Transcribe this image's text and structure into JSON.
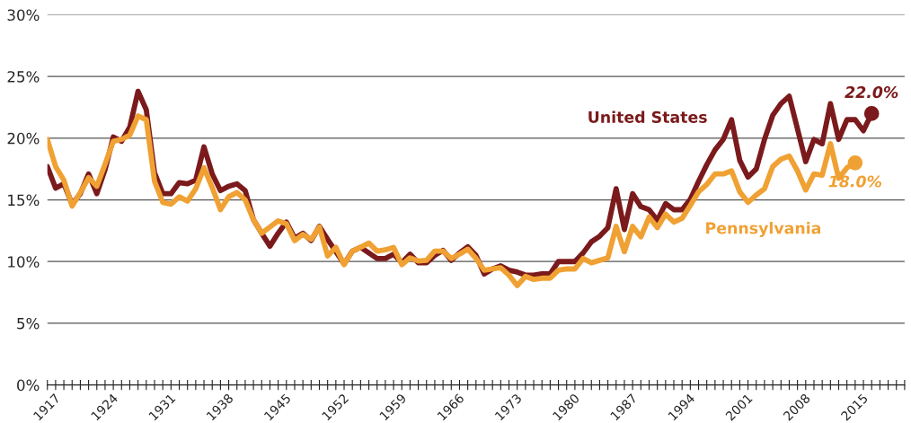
{
  "chart_data": {
    "type": "line",
    "x": [
      1917,
      1918,
      1919,
      1920,
      1921,
      1922,
      1923,
      1924,
      1925,
      1926,
      1927,
      1928,
      1929,
      1930,
      1931,
      1932,
      1933,
      1934,
      1935,
      1936,
      1937,
      1938,
      1939,
      1940,
      1941,
      1942,
      1943,
      1944,
      1945,
      1946,
      1947,
      1948,
      1949,
      1950,
      1951,
      1952,
      1953,
      1954,
      1955,
      1956,
      1957,
      1958,
      1959,
      1960,
      1961,
      1962,
      1963,
      1964,
      1965,
      1966,
      1967,
      1968,
      1969,
      1970,
      1971,
      1972,
      1973,
      1974,
      1975,
      1976,
      1977,
      1978,
      1979,
      1980,
      1981,
      1982,
      1983,
      1984,
      1985,
      1986,
      1987,
      1988,
      1989,
      1990,
      1991,
      1992,
      1993,
      1994,
      1995,
      1996,
      1997,
      1998,
      1999,
      2000,
      2001,
      2002,
      2003,
      2004,
      2005,
      2006,
      2007,
      2008,
      2009,
      2010,
      2011,
      2012,
      2013,
      2014,
      2015,
      2016,
      2017
    ],
    "series": [
      {
        "name": "United States",
        "color": "#7b1a1c",
        "values": [
          17.7,
          15.95,
          16.3,
          14.65,
          15.5,
          17.1,
          15.5,
          17.45,
          20.1,
          19.75,
          20.9,
          23.8,
          22.3,
          17.2,
          15.5,
          15.5,
          16.4,
          16.3,
          16.6,
          19.3,
          17.1,
          15.75,
          16.1,
          16.3,
          15.75,
          13.4,
          12.3,
          11.25,
          12.3,
          13.2,
          11.9,
          12.3,
          11.7,
          12.85,
          11.8,
          10.8,
          9.8,
          10.85,
          11.15,
          10.7,
          10.25,
          10.25,
          10.6,
          9.9,
          10.6,
          9.9,
          9.9,
          10.5,
          10.9,
          10.1,
          10.7,
          11.2,
          10.5,
          9.0,
          9.4,
          9.65,
          9.3,
          9.15,
          8.9,
          8.9,
          9.0,
          9.0,
          10.0,
          10.0,
          10.0,
          10.7,
          11.6,
          12.05,
          12.75,
          15.9,
          12.6,
          15.5,
          14.45,
          14.2,
          13.35,
          14.7,
          14.2,
          14.2,
          15.05,
          16.5,
          17.85,
          19.05,
          19.9,
          21.5,
          18.2,
          16.85,
          17.5,
          19.9,
          21.85,
          22.8,
          23.4,
          20.75,
          18.1,
          19.9,
          19.55,
          22.8,
          19.9,
          21.5,
          21.5,
          20.6,
          22.0
        ]
      },
      {
        "name": "Pennsylvania",
        "color": "#f0a133",
        "values": [
          19.9,
          17.7,
          16.6,
          14.5,
          15.6,
          16.8,
          16.1,
          17.9,
          19.75,
          19.9,
          20.25,
          21.8,
          21.5,
          16.5,
          14.8,
          14.65,
          15.25,
          14.9,
          15.9,
          17.6,
          16.0,
          14.2,
          15.25,
          15.6,
          15.0,
          13.4,
          12.3,
          12.8,
          13.3,
          13.05,
          11.7,
          12.2,
          11.8,
          12.8,
          10.45,
          11.15,
          9.75,
          10.85,
          11.15,
          11.5,
          10.85,
          10.95,
          11.15,
          9.75,
          10.3,
          10.05,
          10.1,
          10.85,
          10.85,
          10.25,
          10.6,
          11.0,
          10.25,
          9.3,
          9.4,
          9.5,
          8.9,
          8.05,
          8.8,
          8.55,
          8.65,
          8.65,
          9.3,
          9.4,
          9.4,
          10.25,
          9.9,
          10.1,
          10.3,
          12.85,
          10.8,
          12.85,
          12.0,
          13.6,
          12.75,
          13.85,
          13.2,
          13.5,
          14.55,
          15.65,
          16.25,
          17.1,
          17.1,
          17.35,
          15.65,
          14.8,
          15.4,
          15.9,
          17.7,
          18.3,
          18.55,
          17.35,
          15.8,
          17.1,
          17.0,
          19.55,
          16.75,
          17.6,
          18.0,
          null,
          null
        ]
      }
    ],
    "annotations": [
      {
        "text": "22.0%",
        "x": 2017,
        "y": 22.0
      },
      {
        "text": "18.0%",
        "x": 2015,
        "y": 18.0
      }
    ],
    "xlim": [
      1917,
      2021
    ],
    "xticks": [
      1917,
      {
        "value": 1918,
        "label": null
      },
      {
        "value": 1919,
        "label": null
      },
      {
        "value": 1920,
        "label": null
      },
      {
        "value": 1921,
        "label": null
      },
      {
        "value": 1922,
        "label": null
      },
      {
        "value": 1923,
        "label": null
      },
      1924,
      {
        "value": 1925,
        "label": null
      },
      {
        "value": 1926,
        "label": null
      },
      {
        "value": 1927,
        "label": null
      },
      {
        "value": 1928,
        "label": null
      },
      {
        "value": 1929,
        "label": null
      },
      {
        "value": 1930,
        "label": null
      },
      1931,
      {
        "value": 1932,
        "label": null
      },
      {
        "value": 1933,
        "label": null
      },
      {
        "value": 1934,
        "label": null
      },
      {
        "value": 1935,
        "label": null
      },
      {
        "value": 1936,
        "label": null
      },
      {
        "value": 1937,
        "label": null
      },
      1938,
      {
        "value": 1939,
        "label": null
      },
      {
        "value": 1940,
        "label": null
      },
      {
        "value": 1941,
        "label": null
      },
      {
        "value": 1942,
        "label": null
      },
      {
        "value": 1943,
        "label": null
      },
      {
        "value": 1944,
        "label": null
      },
      1945,
      {
        "value": 1946,
        "label": null
      },
      {
        "value": 1947,
        "label": null
      },
      {
        "value": 1948,
        "label": null
      },
      {
        "value": 1949,
        "label": null
      },
      {
        "value": 1950,
        "label": null
      },
      {
        "value": 1951,
        "label": null
      },
      1952,
      {
        "value": 1953,
        "label": null
      },
      {
        "value": 1954,
        "label": null
      },
      {
        "value": 1955,
        "label": null
      },
      {
        "value": 1956,
        "label": null
      },
      {
        "value": 1957,
        "label": null
      },
      {
        "value": 1958,
        "label": null
      },
      1959,
      {
        "value": 1960,
        "label": null
      },
      {
        "value": 1961,
        "label": null
      },
      {
        "value": 1962,
        "label": null
      },
      {
        "value": 1963,
        "label": null
      },
      {
        "value": 1964,
        "label": null
      },
      {
        "value": 1965,
        "label": null
      },
      1966,
      {
        "value": 1967,
        "label": null
      },
      {
        "value": 1968,
        "label": null
      },
      {
        "value": 1969,
        "label": null
      },
      {
        "value": 1970,
        "label": null
      },
      {
        "value": 1971,
        "label": null
      },
      {
        "value": 1972,
        "label": null
      },
      1973,
      {
        "value": 1974,
        "label": null
      },
      {
        "value": 1975,
        "label": null
      },
      {
        "value": 1976,
        "label": null
      },
      {
        "value": 1977,
        "label": null
      },
      {
        "value": 1978,
        "label": null
      },
      {
        "value": 1979,
        "label": null
      },
      1980,
      {
        "value": 1981,
        "label": null
      },
      {
        "value": 1982,
        "label": null
      },
      {
        "value": 1983,
        "label": null
      },
      {
        "value": 1984,
        "label": null
      },
      {
        "value": 1985,
        "label": null
      },
      {
        "value": 1986,
        "label": null
      },
      1987,
      {
        "value": 1988,
        "label": null
      },
      {
        "value": 1989,
        "label": null
      },
      {
        "value": 1990,
        "label": null
      },
      {
        "value": 1991,
        "label": null
      },
      {
        "value": 1992,
        "label": null
      },
      {
        "value": 1993,
        "label": null
      },
      1994,
      {
        "value": 1995,
        "label": null
      },
      {
        "value": 1996,
        "label": null
      },
      {
        "value": 1997,
        "label": null
      },
      {
        "value": 1998,
        "label": null
      },
      {
        "value": 1999,
        "label": null
      },
      {
        "value": 2000,
        "label": null
      },
      2001,
      {
        "value": 2002,
        "label": null
      },
      {
        "value": 2003,
        "label": null
      },
      {
        "value": 2004,
        "label": null
      },
      {
        "value": 2005,
        "label": null
      },
      {
        "value": 2006,
        "label": null
      },
      {
        "value": 2007,
        "label": null
      },
      2008,
      {
        "value": 2009,
        "label": null
      },
      {
        "value": 2010,
        "label": null
      },
      {
        "value": 2011,
        "label": null
      },
      {
        "value": 2012,
        "label": null
      },
      {
        "value": 2013,
        "label": null
      },
      {
        "value": 2014,
        "label": null
      },
      2015,
      {
        "value": 2016,
        "label": null
      },
      {
        "value": 2017,
        "label": null
      },
      {
        "value": 2018,
        "label": null
      },
      {
        "value": 2019,
        "label": null
      },
      {
        "value": 2020,
        "label": null
      },
      {
        "value": 2021,
        "label": null
      }
    ],
    "ylim": [
      0,
      30
    ],
    "yticks": [
      {
        "value": 0,
        "label": "0%"
      },
      {
        "value": 5,
        "label": "5%"
      },
      {
        "value": 10,
        "label": "10%"
      },
      {
        "value": 15,
        "label": "15%"
      },
      {
        "value": 20,
        "label": "20%"
      },
      {
        "value": 25,
        "label": "25%"
      },
      {
        "value": 30,
        "label": "30%"
      }
    ],
    "grid": "y",
    "legend": false,
    "marker": "none",
    "line_style": "solid"
  }
}
